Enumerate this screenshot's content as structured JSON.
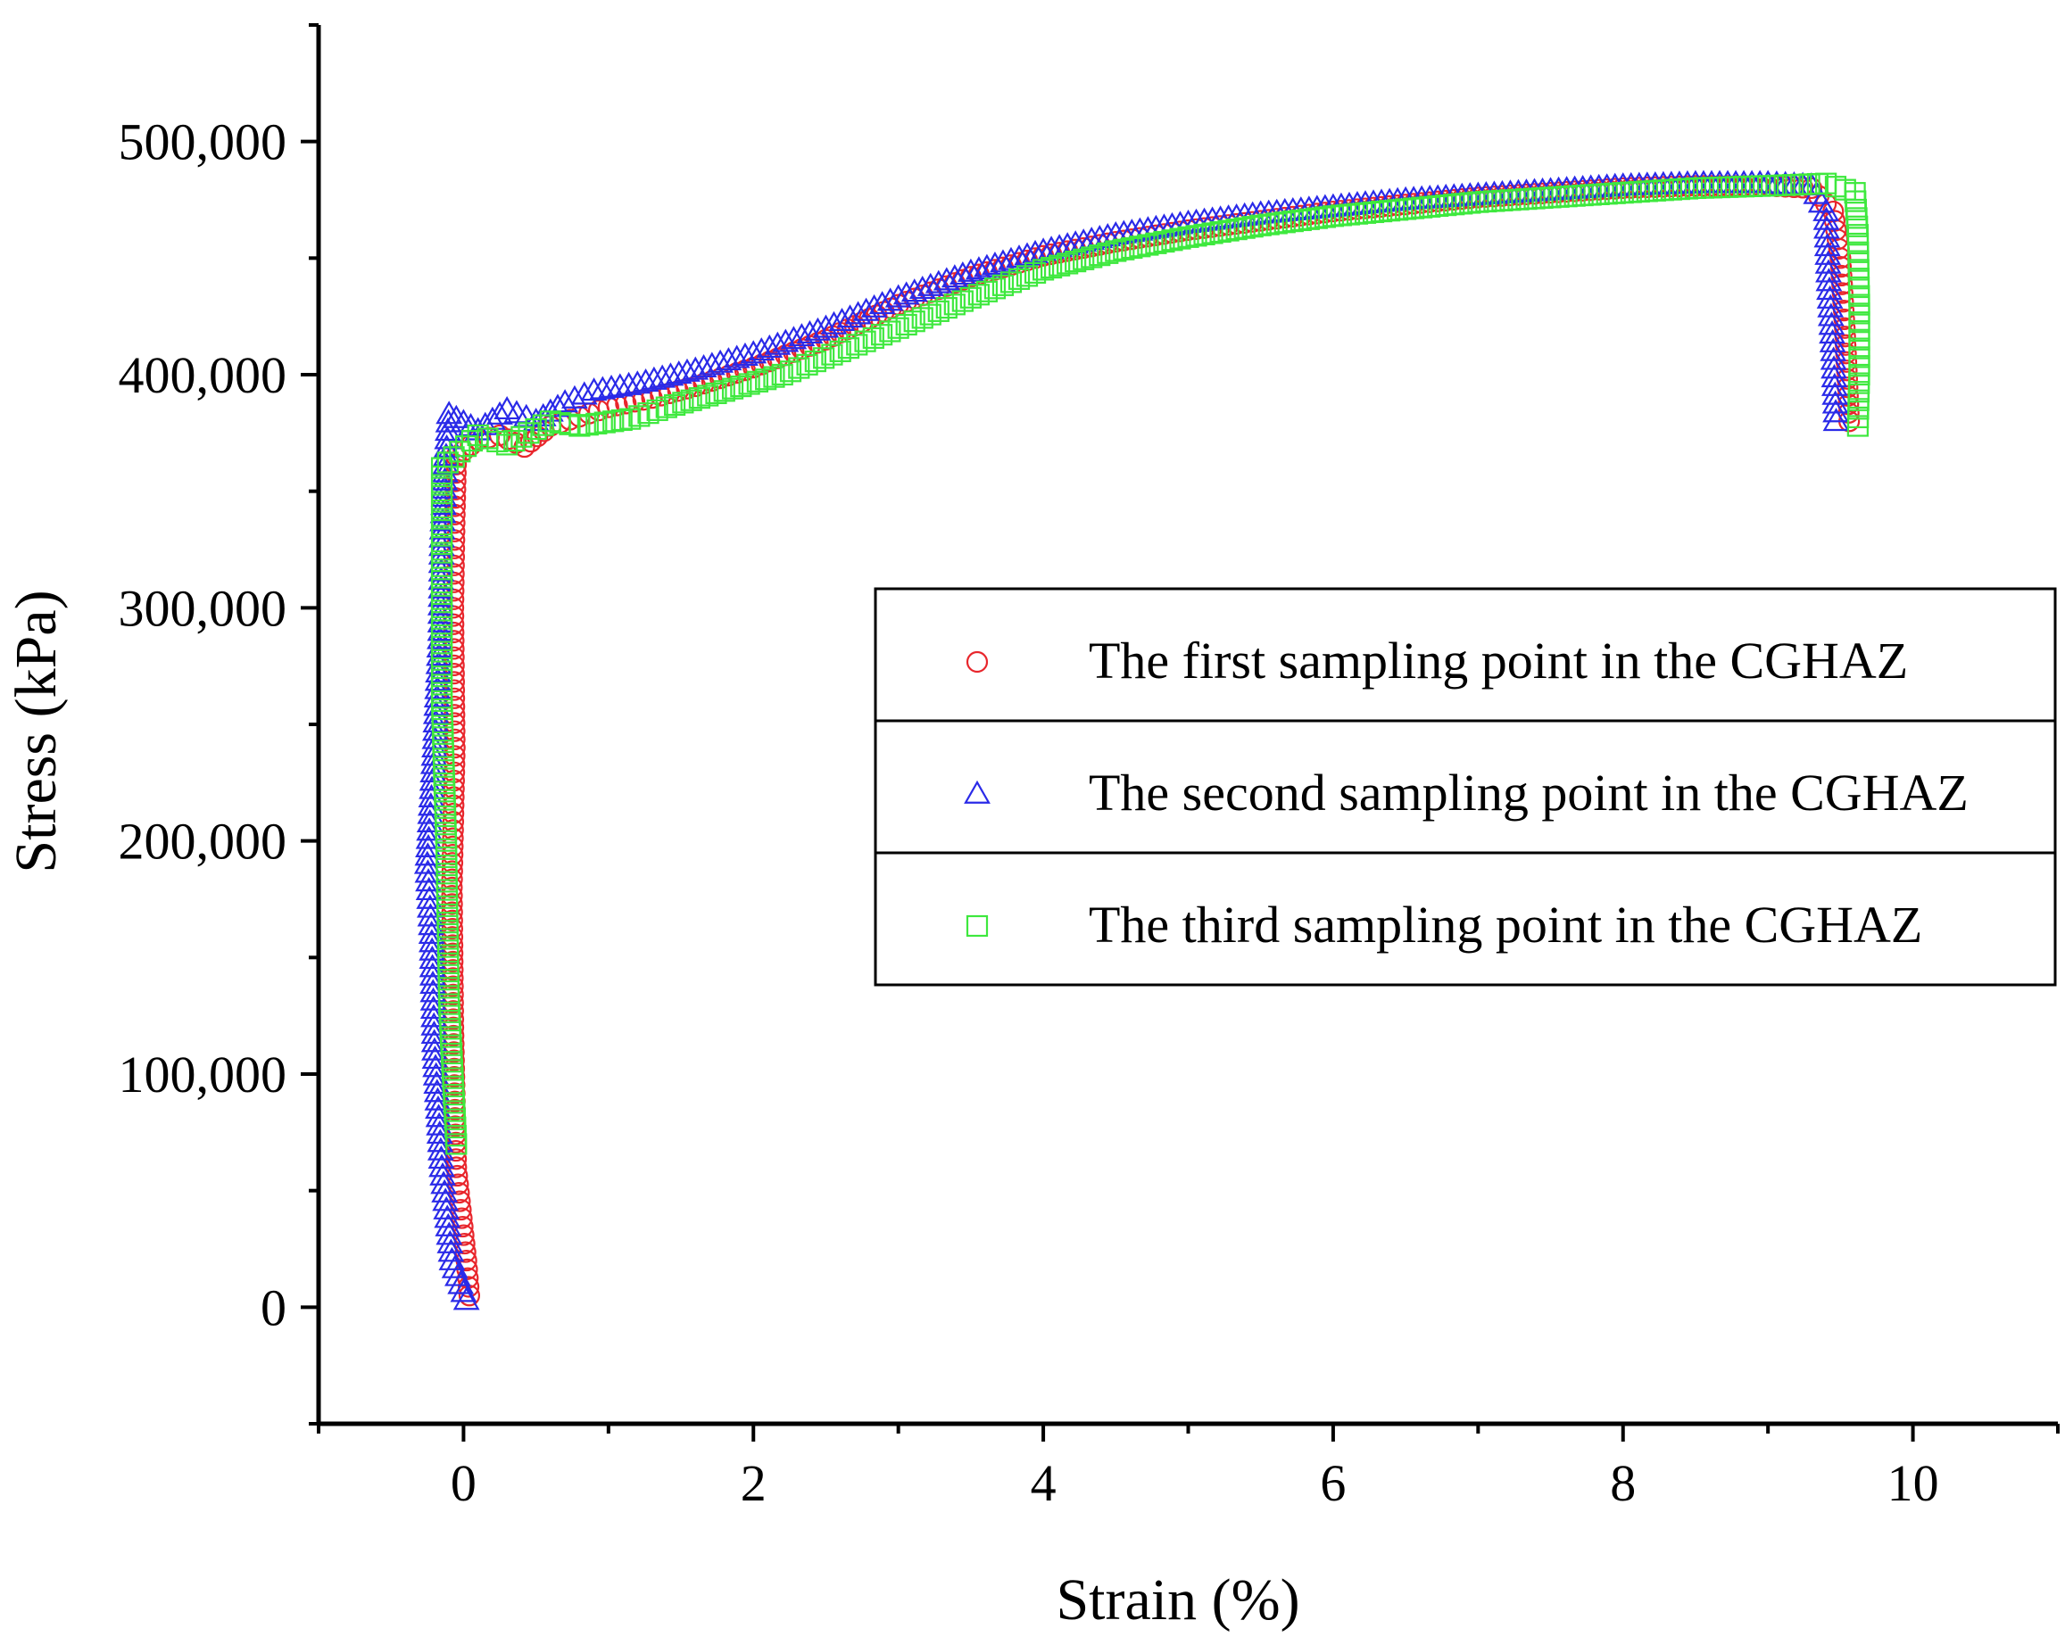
{
  "chart_data": {
    "type": "scatter",
    "title": "",
    "xlabel": "Strain (%)",
    "ylabel": "Stress (kPa)",
    "xlim": [
      -1,
      11
    ],
    "ylim": [
      -50000,
      550000
    ],
    "x_ticks": [
      0,
      2,
      4,
      6,
      8,
      10
    ],
    "x_tick_labels": [
      "0",
      "2",
      "4",
      "6",
      "8",
      "10"
    ],
    "y_ticks": [
      0,
      100000,
      200000,
      300000,
      400000,
      500000
    ],
    "y_tick_labels": [
      "0",
      "100,000",
      "200,000",
      "300,000",
      "400,000",
      "500,000"
    ],
    "grid": false,
    "legend_position": "center-right",
    "series": [
      {
        "name": "The first sampling point in the CGHAZ",
        "marker": "circle",
        "color": "#e8262c",
        "points": [
          [
            0.04,
            5000
          ],
          [
            0.02,
            20000
          ],
          [
            -0.05,
            60000
          ],
          [
            -0.07,
            120000
          ],
          [
            -0.08,
            180000
          ],
          [
            -0.06,
            240000
          ],
          [
            -0.07,
            300000
          ],
          [
            -0.06,
            340000
          ],
          [
            -0.05,
            365000
          ],
          [
            0.1,
            372000
          ],
          [
            0.25,
            374000
          ],
          [
            0.42,
            369000
          ],
          [
            0.6,
            378000
          ],
          [
            0.8,
            382000
          ],
          [
            1.0,
            386000
          ],
          [
            1.3,
            390000
          ],
          [
            1.6,
            395000
          ],
          [
            2.0,
            403000
          ],
          [
            2.5,
            415000
          ],
          [
            3.0,
            430000
          ],
          [
            3.5,
            442000
          ],
          [
            4.0,
            451000
          ],
          [
            4.5,
            457000
          ],
          [
            5.0,
            462000
          ],
          [
            5.5,
            466000
          ],
          [
            6.0,
            470000
          ],
          [
            6.5,
            473000
          ],
          [
            7.0,
            476000
          ],
          [
            7.5,
            478000
          ],
          [
            8.0,
            480000
          ],
          [
            8.5,
            481000
          ],
          [
            9.0,
            481000
          ],
          [
            9.3,
            480000
          ],
          [
            9.45,
            470000
          ],
          [
            9.5,
            450000
          ],
          [
            9.53,
            420000
          ],
          [
            9.56,
            380000
          ]
        ]
      },
      {
        "name": "The second sampling point in the CGHAZ",
        "marker": "triangle",
        "color": "#2a2ae8",
        "points": [
          [
            0.02,
            3000
          ],
          [
            -0.08,
            20000
          ],
          [
            -0.15,
            60000
          ],
          [
            -0.2,
            110000
          ],
          [
            -0.22,
            160000
          ],
          [
            -0.25,
            190000
          ],
          [
            -0.2,
            240000
          ],
          [
            -0.16,
            290000
          ],
          [
            -0.15,
            330000
          ],
          [
            -0.12,
            365000
          ],
          [
            -0.1,
            383000
          ],
          [
            0.1,
            376000
          ],
          [
            0.3,
            385000
          ],
          [
            0.5,
            380000
          ],
          [
            0.7,
            388000
          ],
          [
            0.9,
            393000
          ],
          [
            1.2,
            396000
          ],
          [
            1.6,
            402000
          ],
          [
            2.0,
            409000
          ],
          [
            2.5,
            420000
          ],
          [
            3.0,
            433000
          ],
          [
            3.5,
            444000
          ],
          [
            4.0,
            453000
          ],
          [
            4.5,
            460000
          ],
          [
            5.0,
            465000
          ],
          [
            5.5,
            469000
          ],
          [
            6.0,
            472000
          ],
          [
            6.5,
            475000
          ],
          [
            7.0,
            477000
          ],
          [
            7.5,
            479000
          ],
          [
            8.0,
            481000
          ],
          [
            8.5,
            482000
          ],
          [
            9.0,
            482000
          ],
          [
            9.3,
            481000
          ],
          [
            9.4,
            470000
          ],
          [
            9.42,
            440000
          ],
          [
            9.45,
            410000
          ],
          [
            9.47,
            380000
          ]
        ]
      },
      {
        "name": "The third sampling point in the CGHAZ",
        "marker": "square",
        "color": "#3ee83e",
        "points": [
          [
            -0.05,
            70000
          ],
          [
            -0.1,
            130000
          ],
          [
            -0.12,
            200000
          ],
          [
            -0.15,
            260000
          ],
          [
            -0.15,
            320000
          ],
          [
            -0.15,
            360000
          ],
          [
            0.1,
            374000
          ],
          [
            0.3,
            370000
          ],
          [
            0.6,
            380000
          ],
          [
            0.8,
            378000
          ],
          [
            1.15,
            381000
          ],
          [
            1.4,
            386000
          ],
          [
            1.8,
            393000
          ],
          [
            2.2,
            400000
          ],
          [
            2.6,
            410000
          ],
          [
            3.0,
            420000
          ],
          [
            3.5,
            433000
          ],
          [
            4.0,
            445000
          ],
          [
            4.5,
            453000
          ],
          [
            5.0,
            459000
          ],
          [
            5.5,
            464000
          ],
          [
            6.0,
            468000
          ],
          [
            6.5,
            471000
          ],
          [
            7.0,
            474000
          ],
          [
            7.5,
            476000
          ],
          [
            8.0,
            478000
          ],
          [
            8.5,
            480000
          ],
          [
            9.0,
            481000
          ],
          [
            9.4,
            482000
          ],
          [
            9.6,
            478000
          ],
          [
            9.62,
            460000
          ],
          [
            9.63,
            430000
          ],
          [
            9.63,
            400000
          ],
          [
            9.62,
            378000
          ]
        ]
      }
    ]
  }
}
